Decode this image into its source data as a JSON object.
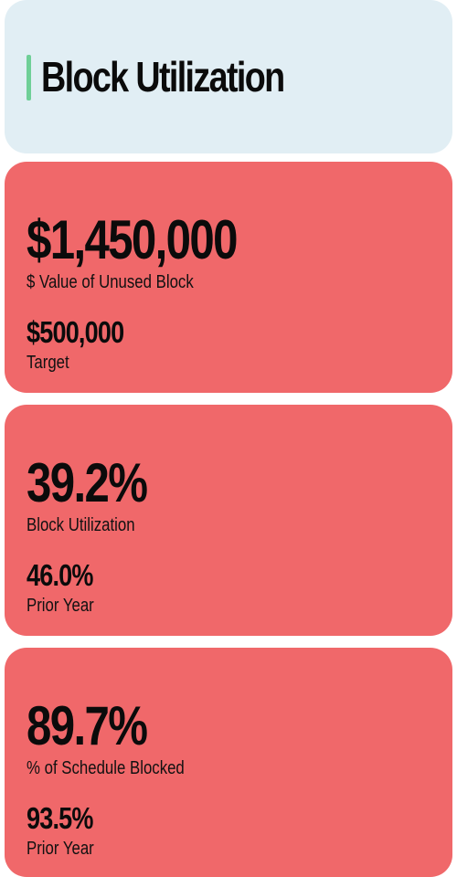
{
  "header": {
    "title": "Block Utilization",
    "accent_color": "#6fcf97"
  },
  "cards": [
    {
      "value": "$1,450,000",
      "label": "$ Value of Unused Block",
      "compare_value": "$500,000",
      "compare_label": "Target",
      "status_color": "#f0686a"
    },
    {
      "value": "39.2%",
      "label": "Block Utilization",
      "compare_value": "46.0%",
      "compare_label": "Prior Year",
      "status_color": "#f0686a"
    },
    {
      "value": "89.7%",
      "label": "% of Schedule Blocked",
      "compare_value": "93.5%",
      "compare_label": "Prior Year",
      "status_color": "#f0686a"
    }
  ]
}
